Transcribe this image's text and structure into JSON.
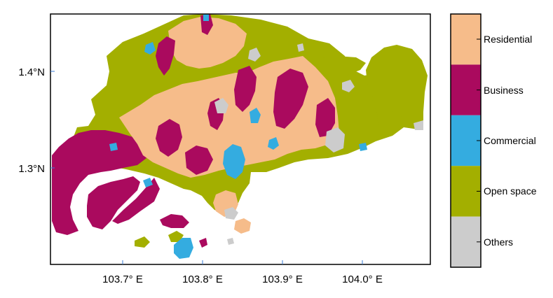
{
  "map": {
    "x_ticks": [
      "103.7° E",
      "103.8° E",
      "103.9° E",
      "104.0° E"
    ],
    "y_ticks": [
      "1.4°N",
      "1.3°N"
    ],
    "x_range": [
      103.61,
      104.08
    ],
    "y_range": [
      1.205,
      1.457
    ]
  },
  "legend": {
    "items": [
      {
        "label": "Residential",
        "color": "#F6BC8A"
      },
      {
        "label": "Business",
        "color": "#AA0A5E"
      },
      {
        "label": "Commercial",
        "color": "#34ACE0"
      },
      {
        "label": "Open space",
        "color": "#A3AF00"
      },
      {
        "label": "Others",
        "color": "#CCCCCC"
      }
    ]
  }
}
